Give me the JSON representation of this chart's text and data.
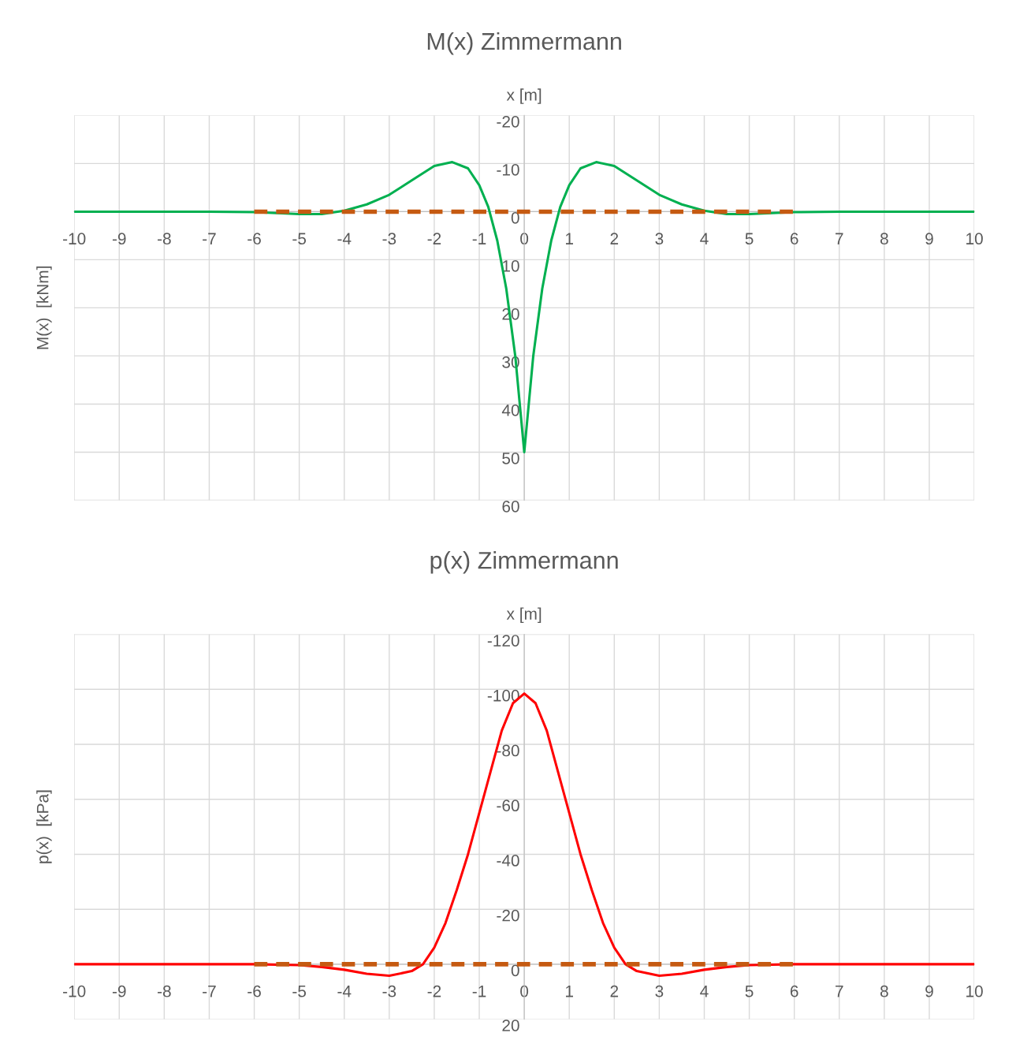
{
  "chart_data": [
    {
      "type": "line",
      "title": "M(x) Zimmermann",
      "xlabel": "x [m]",
      "ylabel": "M(x)  [kNm]",
      "xlim": [
        -10,
        10
      ],
      "xticks": [
        -10,
        -9,
        -8,
        -7,
        -6,
        -5,
        -4,
        -3,
        -2,
        -1,
        0,
        1,
        2,
        3,
        4,
        5,
        6,
        7,
        8,
        9,
        10
      ],
      "ylim": [
        60,
        -20
      ],
      "yticks": [
        -20,
        -10,
        0,
        10,
        20,
        30,
        40,
        50,
        60
      ],
      "grid": true,
      "legend": false,
      "series": [
        {
          "color": "#00b050",
          "line_style": "solid",
          "x": [
            -10,
            -7,
            -6,
            -5.5,
            -5,
            -4.5,
            -4,
            -3.5,
            -3,
            -2.5,
            -2,
            -1.6,
            -1.25,
            -1,
            -0.8,
            -0.6,
            -0.4,
            -0.2,
            0,
            0.2,
            0.4,
            0.6,
            0.8,
            1,
            1.25,
            1.6,
            2,
            2.5,
            3,
            3.5,
            4,
            4.5,
            5,
            5.5,
            6,
            7,
            10
          ],
          "values": [
            0,
            0,
            0.1,
            0.3,
            0.5,
            0.5,
            -0.2,
            -1.5,
            -3.5,
            -6.5,
            -9.5,
            -10.3,
            -9,
            -5.5,
            -1,
            6,
            16,
            30,
            50,
            30,
            16,
            6,
            -1,
            -5.5,
            -9,
            -10.3,
            -9.5,
            -6.5,
            -3.5,
            -1.5,
            -0.2,
            0.5,
            0.5,
            0.3,
            0.1,
            0,
            0
          ]
        },
        {
          "color": "#c55a11",
          "line_style": "dashed",
          "x": [
            -6,
            6
          ],
          "values": [
            0,
            0
          ]
        }
      ]
    },
    {
      "type": "line",
      "title": "p(x) Zimmermann",
      "xlabel": "x [m]",
      "ylabel": "p(x)  [kPa]",
      "xlim": [
        -10,
        10
      ],
      "xticks": [
        -10,
        -9,
        -8,
        -7,
        -6,
        -5,
        -4,
        -3,
        -2,
        -1,
        0,
        1,
        2,
        3,
        4,
        5,
        6,
        7,
        8,
        9,
        10
      ],
      "ylim": [
        20,
        -120
      ],
      "yticks": [
        -120,
        -100,
        -80,
        -60,
        -40,
        -20,
        0,
        20
      ],
      "grid": true,
      "legend": false,
      "series": [
        {
          "color": "#ff0000",
          "line_style": "solid",
          "x": [
            -10,
            -7,
            -6,
            -5,
            -4.5,
            -4,
            -3.5,
            -3,
            -2.5,
            -2.25,
            -2,
            -1.75,
            -1.5,
            -1.25,
            -1,
            -0.75,
            -0.5,
            -0.25,
            0,
            0.25,
            0.5,
            0.75,
            1,
            1.25,
            1.5,
            1.75,
            2,
            2.25,
            2.5,
            3,
            3.5,
            4,
            4.5,
            5,
            6,
            7,
            10
          ],
          "values": [
            0,
            0,
            0,
            0.3,
            1,
            2,
            3.5,
            4.2,
            2.5,
            0,
            -6,
            -15,
            -27,
            -40,
            -55,
            -70,
            -85,
            -95,
            -98.5,
            -95,
            -85,
            -70,
            -55,
            -40,
            -27,
            -15,
            -6,
            0,
            2.5,
            4.2,
            3.5,
            2,
            1,
            0.3,
            0,
            0,
            0
          ]
        },
        {
          "color": "#c55a11",
          "line_style": "dashed",
          "x": [
            -6,
            6
          ],
          "values": [
            0,
            0
          ]
        }
      ]
    }
  ]
}
